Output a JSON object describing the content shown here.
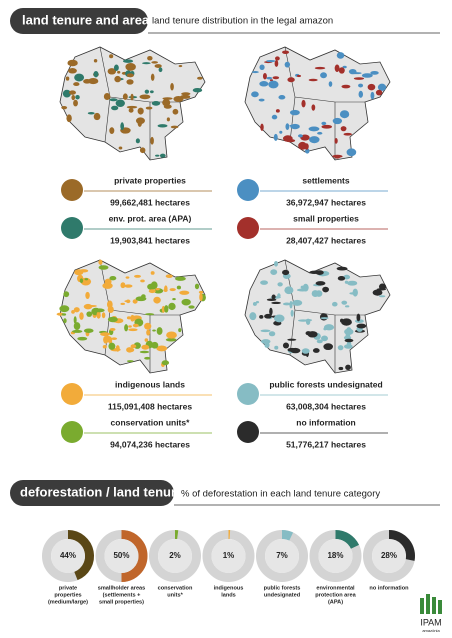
{
  "section1": {
    "title": "land tenure and area",
    "subtitle": "land tenure distribution in the legal amazon",
    "legend": [
      {
        "name": "private properties",
        "area": "99,662,481 hectares",
        "color": "#9b6a28"
      },
      {
        "name": "settlements",
        "area": "36,972,947 hectares",
        "color": "#4b8fc2"
      },
      {
        "name": "env. prot. area (APA)",
        "area": "19,903,841 hectares",
        "color": "#2f7a6b"
      },
      {
        "name": "small properties",
        "area": "28,407,427 hectares",
        "color": "#a3302b"
      },
      {
        "name": "indigenous lands",
        "area": "115,091,408 hectares",
        "color": "#f2ab3a"
      },
      {
        "name": "public forests undesignated",
        "area": "63,008,304 hectares",
        "color": "#86bcc4"
      },
      {
        "name": "conservation units*",
        "area": "94,074,236 hectares",
        "color": "#7aab2f"
      },
      {
        "name": "no information",
        "area": "51,776,217 hectares",
        "color": "#2b2b2b"
      }
    ]
  },
  "section2": {
    "title": "deforestation / land tenure",
    "subtitle": "% of deforestation in each land tenure category",
    "items": [
      {
        "value": 44,
        "label": "44%",
        "name_lines": [
          "private",
          "properties",
          "(medium/large)"
        ],
        "color": "#5a4716"
      },
      {
        "value": 50,
        "label": "50%",
        "name_lines": [
          "smallholder areas",
          "(settlements +",
          "small properties)"
        ],
        "color": "#c0662b"
      },
      {
        "value": 2,
        "label": "2%",
        "name_lines": [
          "conservation",
          "units*"
        ],
        "color": "#7aab2f"
      },
      {
        "value": 1,
        "label": "1%",
        "name_lines": [
          "indigenous",
          "lands"
        ],
        "color": "#f2ab3a"
      },
      {
        "value": 7,
        "label": "7%",
        "name_lines": [
          "public forests",
          "undesignated"
        ],
        "color": "#86bcc4"
      },
      {
        "value": 18,
        "label": "18%",
        "name_lines": [
          "environmental",
          "protection area",
          "(APA)"
        ],
        "color": "#2f7a6b"
      },
      {
        "value": 28,
        "label": "28%",
        "name_lines": [
          "no information"
        ],
        "color": "#2b2b2b"
      }
    ]
  },
  "logo": {
    "name": "IPAM",
    "sub": "amazônia"
  }
}
